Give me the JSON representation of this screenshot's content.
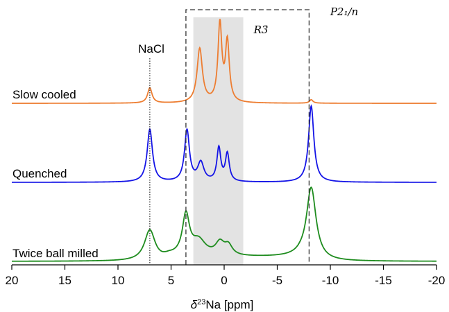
{
  "chart_data": {
    "type": "line",
    "title": "",
    "xlabel": "δ²³Na [ppm]",
    "xlabel_parts": {
      "delta": "δ",
      "sup": "23",
      "rest": "Na [ppm]"
    },
    "ylabel": "",
    "xlim": [
      20,
      -20
    ],
    "x_reversed": true,
    "xticks": [
      20,
      15,
      10,
      5,
      0,
      -5,
      -10,
      -15,
      -20
    ],
    "xtick_labels": [
      "20",
      "15",
      "10",
      "5",
      "0",
      "-5",
      "-10",
      "-15",
      "-20"
    ],
    "grid": false,
    "series": [
      {
        "name": "Slow cooled",
        "color": "#ed7d31",
        "baseline": 0.0,
        "peaks": [
          {
            "ppm": 7.0,
            "height": 0.22,
            "width": 0.25
          },
          {
            "ppm": 2.3,
            "height": 0.78,
            "width": 0.3
          },
          {
            "ppm": 0.4,
            "height": 1.12,
            "width": 0.22
          },
          {
            "ppm": -0.3,
            "height": 0.86,
            "width": 0.22
          },
          {
            "ppm": -8.2,
            "height": 0.05,
            "width": 0.2
          }
        ]
      },
      {
        "name": "Quenched",
        "color": "#1414e6",
        "baseline": 0.0,
        "peaks": [
          {
            "ppm": 7.0,
            "height": 0.76,
            "width": 0.3
          },
          {
            "ppm": 3.5,
            "height": 0.74,
            "width": 0.28
          },
          {
            "ppm": 2.2,
            "height": 0.27,
            "width": 0.35
          },
          {
            "ppm": 0.5,
            "height": 0.48,
            "width": 0.22
          },
          {
            "ppm": -0.3,
            "height": 0.4,
            "width": 0.22
          },
          {
            "ppm": -8.2,
            "height": 1.1,
            "width": 0.3
          }
        ]
      },
      {
        "name": "Twice ball milled",
        "color": "#1e8c1e",
        "baseline": 0.0,
        "peaks": [
          {
            "ppm": 7.0,
            "height": 0.44,
            "width": 0.6
          },
          {
            "ppm": 3.6,
            "height": 0.58,
            "width": 0.4
          },
          {
            "ppm": 2.4,
            "height": 0.22,
            "width": 0.8
          },
          {
            "ppm": 0.4,
            "height": 0.18,
            "width": 0.5
          },
          {
            "ppm": -0.4,
            "height": 0.14,
            "width": 0.45
          },
          {
            "ppm": -8.2,
            "height": 1.06,
            "width": 0.55
          }
        ],
        "broad_background": {
          "from": 5.0,
          "to": -7.0,
          "height": 0.06
        }
      }
    ],
    "annotations": {
      "nacl": {
        "label": "NaCl",
        "ppm": 7.0
      },
      "r3bar_region": {
        "label": "R3̄",
        "from": 2.9,
        "to": -1.8
      },
      "p21n_box": {
        "label": "P2₁/n",
        "from": 3.6,
        "to": -8.0
      }
    }
  }
}
